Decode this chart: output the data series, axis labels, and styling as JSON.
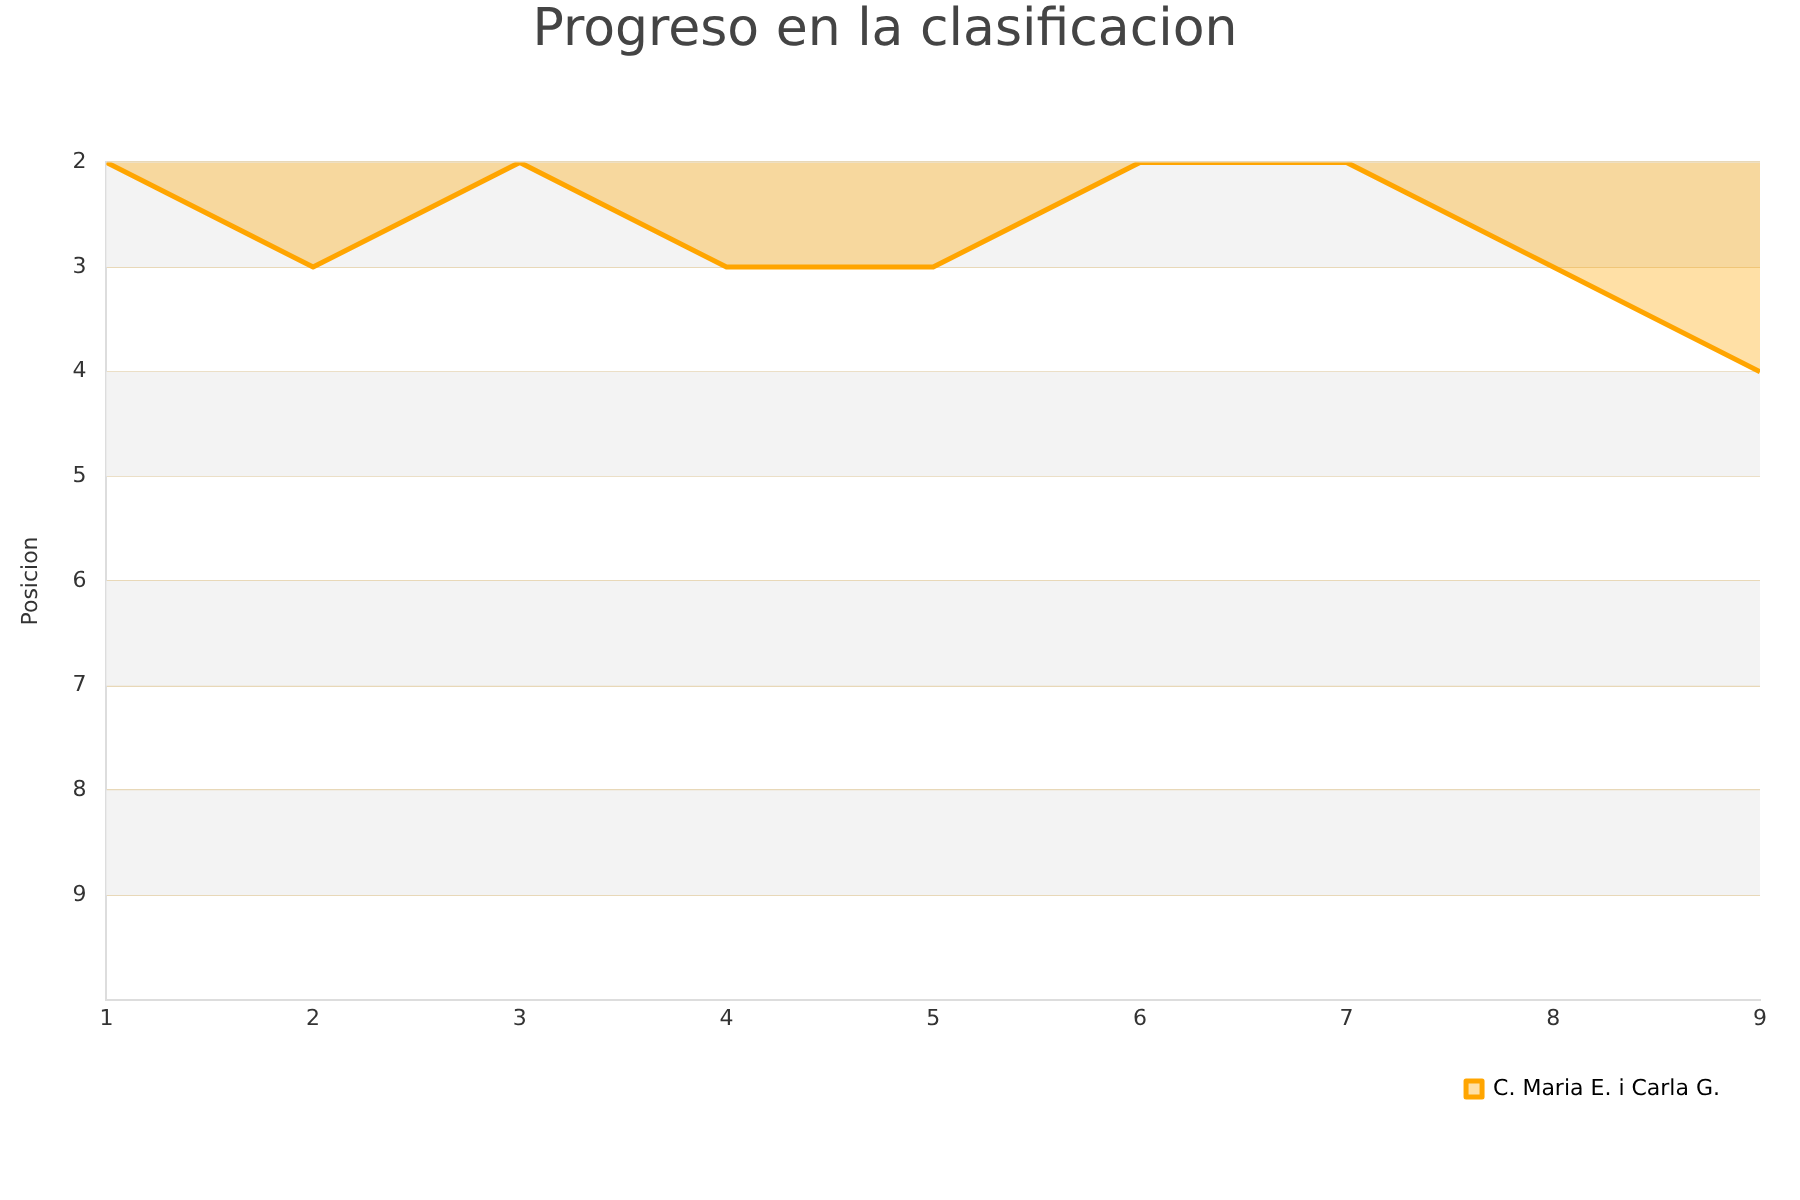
{
  "chart_data": {
    "type": "area",
    "title": "Progreso en la clasificacion",
    "ylabel": "Posicion",
    "x": [
      1,
      2,
      3,
      4,
      5,
      6,
      7,
      8,
      9
    ],
    "series": [
      {
        "name": "C. Maria E. i Carla G.",
        "color": "#ffa500",
        "values": [
          2,
          3,
          2,
          3,
          3,
          2,
          2,
          3,
          4
        ]
      }
    ],
    "xlim": [
      1,
      9
    ],
    "xticks": [
      1,
      2,
      3,
      4,
      5,
      6,
      7,
      8,
      9
    ],
    "ylim": [
      10,
      2
    ],
    "yticks": [
      2,
      3,
      4,
      5,
      6,
      7,
      8,
      9
    ],
    "bands": [
      {
        "axis": "y",
        "from": 2,
        "to": 3,
        "color": "#f3f3f3"
      },
      {
        "axis": "y",
        "from": 4,
        "to": 5,
        "color": "#f3f3f3"
      },
      {
        "axis": "y",
        "from": 6,
        "to": 7,
        "color": "#f3f3f3"
      },
      {
        "axis": "y",
        "from": 8,
        "to": 9,
        "color": "#f3f3f3"
      }
    ],
    "grid": "y",
    "legend": "bottom right",
    "marker": "none",
    "line_style": "solid"
  }
}
